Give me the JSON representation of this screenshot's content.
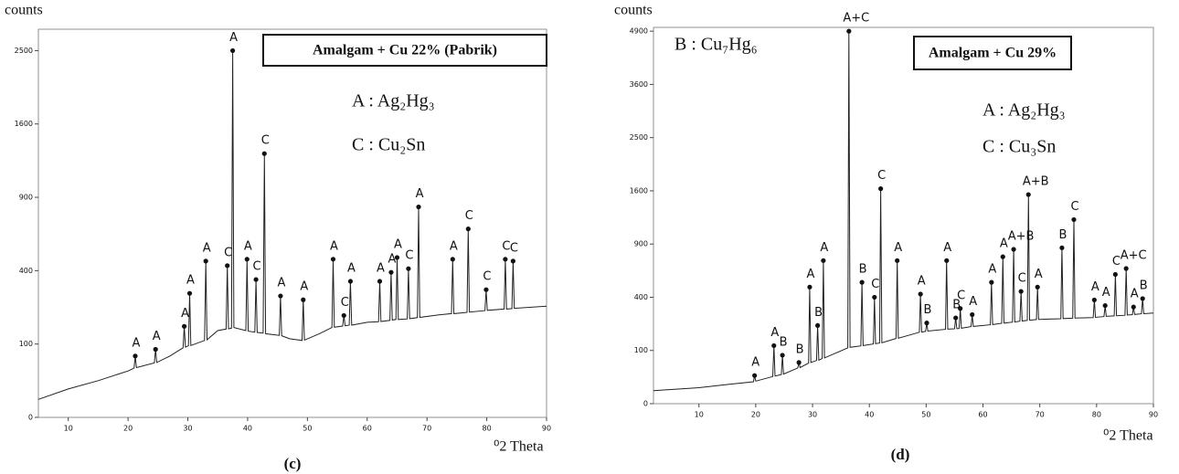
{
  "chart_data": [
    {
      "type": "line",
      "title": "Amalgam + Cu 22% (Pabrik)",
      "caption": "(c)",
      "y_label": "counts",
      "x_label": "⁰2 Theta",
      "notes": [
        "A : Ag₂Hg₃",
        "C : Cu₂Sn"
      ],
      "yscale": "sqrt",
      "color": "#222",
      "xlim": [
        5,
        90
      ],
      "xticks": [
        10,
        20,
        30,
        40,
        50,
        60,
        70,
        80,
        90
      ],
      "ylim": [
        0,
        2800
      ],
      "yticks": [
        0,
        100,
        400,
        900,
        1600,
        2500
      ],
      "x": [
        5,
        10,
        15,
        20,
        21.0,
        21.2,
        21.4,
        24.4,
        24.6,
        24.8,
        27,
        29.2,
        29.4,
        29.6,
        30.1,
        30.3,
        30.5,
        32.8,
        33,
        33.2,
        35,
        36.4,
        36.6,
        36.8,
        37.3,
        37.5,
        37.7,
        39.7,
        39.9,
        40.1,
        41.2,
        41.4,
        41.6,
        42.6,
        42.8,
        43.0,
        45.3,
        45.5,
        45.7,
        47,
        49.1,
        49.3,
        49.5,
        52,
        54.1,
        54.3,
        54.5,
        55.9,
        56.1,
        56.3,
        57.0,
        57.2,
        57.4,
        60,
        61.9,
        62.1,
        62.3,
        63.8,
        64,
        64.2,
        64.8,
        65,
        65.2,
        66.7,
        66.9,
        67.1,
        68.4,
        68.6,
        68.8,
        72,
        74.1,
        74.3,
        74.5,
        76.7,
        76.9,
        77.1,
        79.7,
        79.9,
        80.1,
        82.9,
        83.1,
        83.3,
        84.2,
        84.4,
        84.6,
        90
      ],
      "values": [
        6,
        15,
        25,
        40,
        45,
        70,
        46,
        55,
        86,
        56,
        70,
        90,
        154,
        92,
        95,
        286,
        96,
        110,
        454,
        112,
        140,
        145,
        428,
        146,
        148,
        2500,
        150,
        140,
        465,
        138,
        135,
        353,
        134,
        132,
        1293,
        130,
        125,
        274,
        124,
        115,
        110,
        257,
        111,
        130,
        150,
        465,
        151,
        155,
        193,
        156,
        158,
        344,
        158,
        168,
        170,
        344,
        171,
        175,
        391,
        176,
        178,
        475,
        178,
        180,
        411,
        181,
        185,
        823,
        186,
        195,
        200,
        465,
        200,
        205,
        660,
        206,
        212,
        303,
        213,
        218,
        465,
        218,
        220,
        454,
        221,
        230
      ],
      "annotations": [
        {
          "text": "A",
          "x": 21.2,
          "y": 70
        },
        {
          "text": "A",
          "x": 24.6,
          "y": 86
        },
        {
          "text": "A",
          "x": 29.4,
          "y": 154
        },
        {
          "text": "A",
          "x": 30.3,
          "y": 286
        },
        {
          "text": "A",
          "x": 33,
          "y": 454
        },
        {
          "text": "C",
          "x": 36.6,
          "y": 428
        },
        {
          "text": "A",
          "x": 37.5,
          "y": 2500
        },
        {
          "text": "A",
          "x": 39.9,
          "y": 465
        },
        {
          "text": "C",
          "x": 41.4,
          "y": 353
        },
        {
          "text": "C",
          "x": 42.8,
          "y": 1293
        },
        {
          "text": "A",
          "x": 45.5,
          "y": 274
        },
        {
          "text": "A",
          "x": 49.3,
          "y": 257
        },
        {
          "text": "A",
          "x": 54.3,
          "y": 465
        },
        {
          "text": "C",
          "x": 56.1,
          "y": 193
        },
        {
          "text": "A",
          "x": 57.2,
          "y": 344
        },
        {
          "text": "A",
          "x": 62.1,
          "y": 344
        },
        {
          "text": "A",
          "x": 64,
          "y": 391
        },
        {
          "text": "A",
          "x": 65,
          "y": 475
        },
        {
          "text": "C",
          "x": 66.9,
          "y": 411
        },
        {
          "text": "A",
          "x": 68.6,
          "y": 823
        },
        {
          "text": "A",
          "x": 74.3,
          "y": 465
        },
        {
          "text": "C",
          "x": 76.9,
          "y": 660
        },
        {
          "text": "C",
          "x": 79.9,
          "y": 303
        },
        {
          "text": "C",
          "x": 83.1,
          "y": 465
        },
        {
          "text": "C",
          "x": 84.4,
          "y": 454
        }
      ]
    },
    {
      "type": "line",
      "title": "Amalgam + Cu 29%",
      "caption": "(d)",
      "y_label": "counts",
      "x_label": "⁰2 Theta",
      "notes": [
        "B : Cu₇Hg₆",
        "A : Ag₂Hg₃",
        "C : Cu₃Sn"
      ],
      "yscale": "sqrt",
      "color": "#222",
      "xlim": [
        2,
        90
      ],
      "xticks": [
        10,
        20,
        30,
        40,
        50,
        60,
        70,
        80,
        90
      ],
      "ylim": [
        0,
        5000
      ],
      "yticks": [
        0,
        100,
        400,
        900,
        1600,
        2500,
        3600,
        4900
      ],
      "x": [
        2,
        10,
        15,
        19.6,
        19.8,
        20.0,
        23.0,
        23.2,
        23.4,
        24.5,
        24.7,
        24.9,
        27.4,
        27.6,
        27.8,
        29.3,
        29.5,
        29.7,
        30.7,
        30.9,
        31.1,
        31.7,
        31.9,
        32.1,
        36.2,
        36.4,
        36.6,
        38.5,
        38.7,
        38.9,
        40.7,
        40.9,
        41.1,
        41.8,
        42.0,
        42.2,
        44.7,
        44.9,
        45.1,
        48.8,
        49.0,
        49.2,
        49.9,
        50.1,
        50.3,
        53.4,
        53.6,
        53.8,
        55.0,
        55.2,
        55.4,
        55.8,
        56.0,
        56.2,
        57.9,
        58.1,
        58.3,
        61.3,
        61.5,
        61.7,
        63.3,
        63.5,
        63.7,
        65.2,
        65.4,
        65.6,
        66.5,
        66.7,
        66.9,
        67.8,
        68.0,
        68.2,
        69.4,
        69.6,
        69.8,
        73.7,
        73.9,
        74.1,
        75.8,
        76.0,
        76.2,
        79.4,
        79.6,
        79.8,
        81.3,
        81.5,
        81.7,
        83.1,
        83.3,
        83.5,
        85.0,
        85.2,
        85.4,
        86.3,
        86.5,
        86.7,
        87.9,
        88.1,
        88.3,
        90
      ],
      "values": [
        6,
        9,
        13,
        17,
        28,
        18,
        26,
        119,
        27,
        30,
        83,
        31,
        45,
        60,
        46,
        58,
        480,
        60,
        66,
        216,
        67,
        72,
        723,
        74,
        110,
        4900,
        112,
        118,
        520,
        119,
        126,
        400,
        127,
        130,
        1632,
        131,
        150,
        723,
        151,
        180,
        424,
        181,
        185,
        230,
        186,
        195,
        723,
        196,
        198,
        260,
        199,
        200,
        320,
        201,
        210,
        280,
        211,
        220,
        520,
        221,
        228,
        762,
        229,
        235,
        841,
        236,
        240,
        445,
        241,
        245,
        1544,
        246,
        250,
        480,
        251,
        255,
        858,
        256,
        258,
        1197,
        259,
        262,
        380,
        263,
        268,
        340,
        269,
        272,
        590,
        273,
        276,
        645,
        277,
        280,
        330,
        281,
        285,
        390,
        286,
        290
      ],
      "annotations": [
        {
          "text": "A",
          "x": 19.8,
          "y": 28
        },
        {
          "text": "A",
          "x": 23.2,
          "y": 119
        },
        {
          "text": "B",
          "x": 24.7,
          "y": 83
        },
        {
          "text": "B",
          "x": 27.6,
          "y": 60
        },
        {
          "text": "A",
          "x": 29.5,
          "y": 480
        },
        {
          "text": "B",
          "x": 30.9,
          "y": 216
        },
        {
          "text": "A",
          "x": 31.9,
          "y": 723
        },
        {
          "text": "A+C",
          "x": 36.4,
          "y": 4900
        },
        {
          "text": "B",
          "x": 38.7,
          "y": 520
        },
        {
          "text": "C",
          "x": 40.9,
          "y": 400
        },
        {
          "text": "C",
          "x": 42.0,
          "y": 1632
        },
        {
          "text": "A",
          "x": 44.9,
          "y": 723
        },
        {
          "text": "A",
          "x": 49.0,
          "y": 424
        },
        {
          "text": "B",
          "x": 50.1,
          "y": 230
        },
        {
          "text": "A",
          "x": 53.6,
          "y": 723
        },
        {
          "text": "B",
          "x": 55.2,
          "y": 260
        },
        {
          "text": "C",
          "x": 56.0,
          "y": 320
        },
        {
          "text": "A",
          "x": 58.1,
          "y": 280
        },
        {
          "text": "A",
          "x": 61.5,
          "y": 520
        },
        {
          "text": "A",
          "x": 63.5,
          "y": 762
        },
        {
          "text": "A+B",
          "x": 65.4,
          "y": 841
        },
        {
          "text": "C",
          "x": 66.7,
          "y": 445
        },
        {
          "text": "A+B",
          "x": 68.0,
          "y": 1544
        },
        {
          "text": "A",
          "x": 69.6,
          "y": 480
        },
        {
          "text": "B",
          "x": 73.9,
          "y": 858
        },
        {
          "text": "C",
          "x": 76.0,
          "y": 1197
        },
        {
          "text": "A",
          "x": 79.6,
          "y": 380
        },
        {
          "text": "A",
          "x": 81.5,
          "y": 340
        },
        {
          "text": "C",
          "x": 83.3,
          "y": 590
        },
        {
          "text": "A+C",
          "x": 85.2,
          "y": 645
        },
        {
          "text": "A",
          "x": 86.5,
          "y": 330
        },
        {
          "text": "B",
          "x": 88.1,
          "y": 390
        }
      ]
    }
  ]
}
